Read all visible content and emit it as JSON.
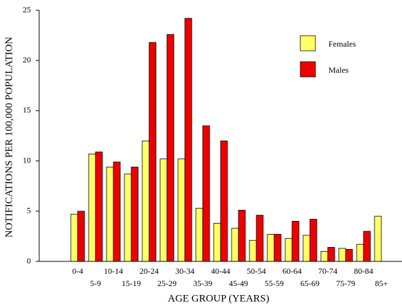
{
  "chart_data": {
    "type": "bar",
    "x_label": "AGE GROUP (YEARS)",
    "y_label": "NOTIFICATIONS PER 100,000 POPULATION",
    "categories": [
      "0-4",
      "5-9",
      "10-14",
      "15-19",
      "20-24",
      "25-29",
      "30-34",
      "35-39",
      "40-44",
      "45-49",
      "50-54",
      "55-59",
      "60-64",
      "65-69",
      "70-74",
      "75-79",
      "80-84",
      "85+"
    ],
    "series": [
      {
        "name": "Females",
        "color": "#ffff66",
        "values": [
          4.7,
          10.7,
          9.4,
          8.7,
          12.0,
          10.2,
          10.2,
          5.3,
          3.8,
          3.3,
          2.1,
          2.7,
          2.3,
          2.6,
          1.0,
          1.3,
          1.7,
          4.5
        ]
      },
      {
        "name": "Males",
        "color": "#ee0000",
        "values": [
          5.0,
          10.9,
          9.9,
          9.4,
          21.8,
          22.6,
          24.2,
          13.5,
          12.0,
          5.1,
          4.6,
          2.7,
          4.0,
          4.2,
          1.4,
          1.2,
          3.0,
          null
        ]
      }
    ],
    "ylim": [
      0,
      25
    ],
    "yticks": [
      0,
      5,
      10,
      15,
      20,
      25
    ]
  }
}
